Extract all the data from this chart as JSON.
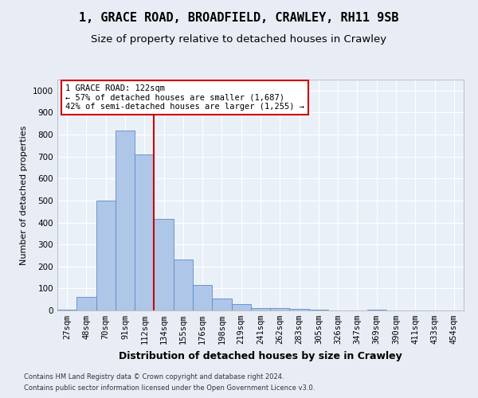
{
  "title": "1, GRACE ROAD, BROADFIELD, CRAWLEY, RH11 9SB",
  "subtitle": "Size of property relative to detached houses in Crawley",
  "xlabel": "Distribution of detached houses by size in Crawley",
  "ylabel": "Number of detached properties",
  "categories": [
    "27sqm",
    "48sqm",
    "70sqm",
    "91sqm",
    "112sqm",
    "134sqm",
    "155sqm",
    "176sqm",
    "198sqm",
    "219sqm",
    "241sqm",
    "262sqm",
    "283sqm",
    "305sqm",
    "326sqm",
    "347sqm",
    "369sqm",
    "390sqm",
    "411sqm",
    "433sqm",
    "454sqm"
  ],
  "values": [
    5,
    60,
    500,
    820,
    710,
    415,
    230,
    115,
    55,
    30,
    12,
    12,
    8,
    5,
    0,
    0,
    5,
    0,
    0,
    0,
    0
  ],
  "bar_color": "#aec6e8",
  "bar_edge_color": "#5b8cc8",
  "bar_width": 1.0,
  "vline_x": 4.5,
  "vline_color": "#cc0000",
  "annotation_text": "1 GRACE ROAD: 122sqm\n← 57% of detached houses are smaller (1,687)\n42% of semi-detached houses are larger (1,255) →",
  "annotation_box_color": "#ffffff",
  "annotation_box_edge": "#cc0000",
  "ylim": [
    0,
    1050
  ],
  "yticks": [
    0,
    100,
    200,
    300,
    400,
    500,
    600,
    700,
    800,
    900,
    1000
  ],
  "footnote1": "Contains HM Land Registry data © Crown copyright and database right 2024.",
  "footnote2": "Contains public sector information licensed under the Open Government Licence v3.0.",
  "bg_color": "#e8edf5",
  "plot_bg_color": "#eaf0f8",
  "grid_color": "#ffffff",
  "title_fontsize": 11,
  "subtitle_fontsize": 9.5,
  "xlabel_fontsize": 9,
  "ylabel_fontsize": 8,
  "tick_fontsize": 7.5,
  "annot_fontsize": 7.5
}
